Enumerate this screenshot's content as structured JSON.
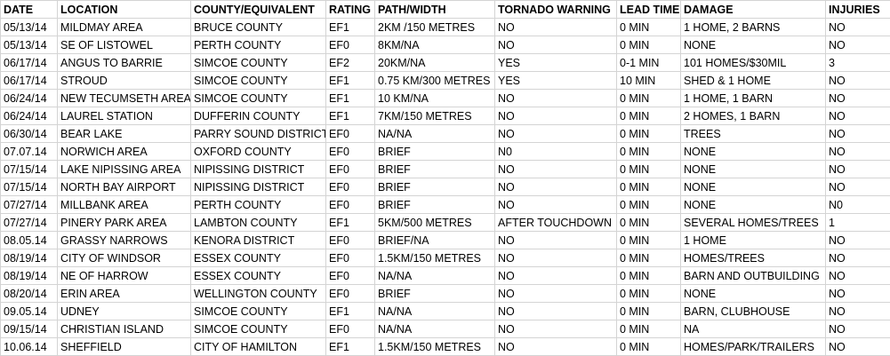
{
  "columns": [
    "DATE",
    "LOCATION",
    "COUNTY/EQUIVALENT",
    "RATING",
    "PATH/WIDTH",
    "TORNADO WARNING",
    "LEAD TIME",
    "DAMAGE",
    "INJURIES"
  ],
  "rows": [
    [
      "05/13/14",
      "MILDMAY AREA",
      "BRUCE COUNTY",
      "EF1",
      "2KM /150 METRES",
      "NO",
      "0 MIN",
      "1 HOME, 2 BARNS",
      "NO"
    ],
    [
      "05/13/14",
      "SE OF LISTOWEL",
      "PERTH COUNTY",
      "EF0",
      "8KM/NA",
      "NO",
      "0 MIN",
      "NONE",
      "NO"
    ],
    [
      "06/17/14",
      "ANGUS TO BARRIE",
      "SIMCOE COUNTY",
      "EF2",
      "20KM/NA",
      "YES",
      "0-1 MIN",
      "101 HOMES/$30MIL",
      "3"
    ],
    [
      "06/17/14",
      "STROUD",
      "SIMCOE COUNTY",
      "EF1",
      "0.75 KM/300 METRES",
      "YES",
      "10 MIN",
      "SHED & 1 HOME",
      "NO"
    ],
    [
      "06/24/14",
      "NEW TECUMSETH AREA",
      "SIMCOE COUNTY",
      "EF1",
      "10 KM/NA",
      "NO",
      "0 MIN",
      "1 HOME, 1 BARN",
      "NO"
    ],
    [
      "06/24/14",
      "LAUREL STATION",
      "DUFFERIN COUNTY",
      "EF1",
      "7KM/150 METRES",
      "NO",
      "0 MIN",
      "2 HOMES, 1 BARN",
      "NO"
    ],
    [
      "06/30/14",
      "BEAR LAKE",
      "PARRY SOUND DISTRICT",
      "EF0",
      "NA/NA",
      "NO",
      "0 MIN",
      "TREES",
      "NO"
    ],
    [
      "07.07.14",
      "NORWICH AREA",
      "OXFORD COUNTY",
      "EF0",
      "BRIEF",
      "N0",
      "0 MIN",
      "NONE",
      "NO"
    ],
    [
      "07/15/14",
      "LAKE NIPISSING AREA",
      "NIPISSING DISTRICT",
      "EF0",
      "BRIEF",
      "NO",
      "0 MIN",
      "NONE",
      "NO"
    ],
    [
      "07/15/14",
      "NORTH BAY AIRPORT",
      "NIPISSING DISTRICT",
      "EF0",
      "BRIEF",
      "NO",
      "0 MIN",
      "NONE",
      "NO"
    ],
    [
      "07/27/14",
      "MILLBANK AREA",
      "PERTH COUNTY",
      "EF0",
      "BRIEF",
      "NO",
      "0 MIN",
      "NONE",
      "N0"
    ],
    [
      "07/27/14",
      "PINERY PARK AREA",
      "LAMBTON COUNTY",
      "EF1",
      "5KM/500 METRES",
      "AFTER TOUCHDOWN",
      "0 MIN",
      "SEVERAL HOMES/TREES",
      "1"
    ],
    [
      "08.05.14",
      "GRASSY NARROWS",
      "KENORA DISTRICT",
      "EF0",
      "BRIEF/NA",
      "NO",
      "0 MIN",
      "1 HOME",
      "NO"
    ],
    [
      "08/19/14",
      "CITY OF WINDSOR",
      "ESSEX COUNTY",
      "EF0",
      "1.5KM/150 METRES",
      "NO",
      "0 MIN",
      "HOMES/TREES",
      "NO"
    ],
    [
      "08/19/14",
      "NE OF HARROW",
      "ESSEX COUNTY",
      "EF0",
      "NA/NA",
      "NO",
      "0 MIN",
      "BARN AND OUTBUILDING",
      "NO"
    ],
    [
      "08/20/14",
      "ERIN AREA",
      "WELLINGTON COUNTY",
      "EF0",
      "BRIEF",
      "NO",
      "0 MIN",
      "NONE",
      "NO"
    ],
    [
      "09.05.14",
      "UDNEY",
      "SIMCOE COUNTY",
      "EF1",
      "NA/NA",
      "NO",
      "0 MIN",
      "BARN, CLUBHOUSE",
      "NO"
    ],
    [
      "09/15/14",
      "CHRISTIAN ISLAND",
      "SIMCOE COUNTY",
      "EF0",
      "NA/NA",
      "NO",
      "0 MIN",
      "NA",
      "NO"
    ],
    [
      "10.06.14",
      "SHEFFIELD",
      "CITY OF HAMILTON",
      "EF1",
      "1.5KM/150 METRES",
      "NO",
      "0 MIN",
      "HOMES/PARK/TRAILERS",
      "NO"
    ]
  ]
}
